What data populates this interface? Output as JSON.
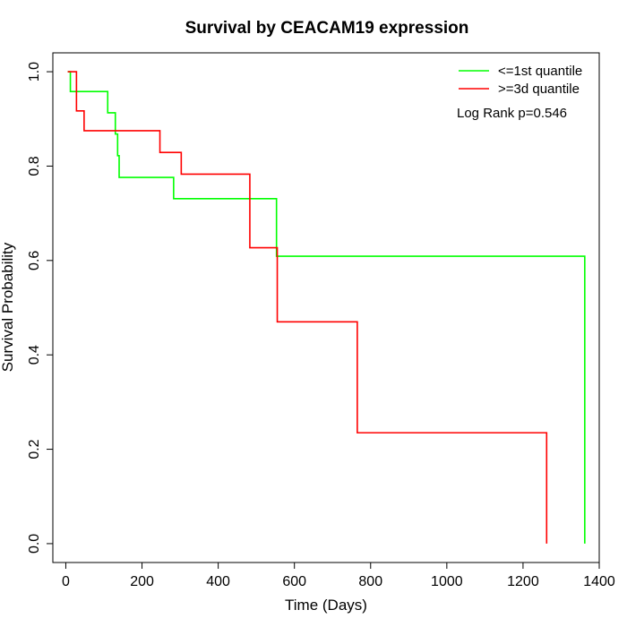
{
  "chart_data": {
    "type": "line",
    "title": "Survival by CEACAM19 expression",
    "xlabel": "Time (Days)",
    "ylabel": "Survival Probability",
    "xlim": [
      -34,
      1400
    ],
    "ylim": [
      -0.04,
      1.04
    ],
    "xticks": [
      0,
      200,
      400,
      600,
      800,
      1000,
      1200,
      1400
    ],
    "yticks": [
      0.0,
      0.2,
      0.4,
      0.6,
      0.8,
      1.0
    ],
    "xtick_labels": [
      "0",
      "200",
      "400",
      "600",
      "800",
      "1000",
      "1200",
      "1400"
    ],
    "ytick_labels": [
      "0.0",
      "0.2",
      "0.4",
      "0.6",
      "0.8",
      "1.0"
    ],
    "grid": false,
    "legend_position": "top-right",
    "annotation": "Log Rank p=0.546",
    "series": [
      {
        "name": "<=1st quantile",
        "color": "#00ff00",
        "steps": [
          [
            5,
            1.0
          ],
          [
            12,
            0.958
          ],
          [
            110,
            0.913
          ],
          [
            130,
            0.868
          ],
          [
            136,
            0.822
          ],
          [
            140,
            0.776
          ],
          [
            283,
            0.731
          ],
          [
            553,
            0.609
          ],
          [
            1362,
            0.0
          ]
        ]
      },
      {
        "name": ">=3d quantile",
        "color": "#ff0000",
        "steps": [
          [
            5,
            1.0
          ],
          [
            28,
            0.917
          ],
          [
            48,
            0.875
          ],
          [
            247,
            0.829
          ],
          [
            303,
            0.783
          ],
          [
            483,
            0.627
          ],
          [
            555,
            0.47
          ],
          [
            765,
            0.235
          ],
          [
            1262,
            0.0
          ]
        ]
      }
    ]
  }
}
